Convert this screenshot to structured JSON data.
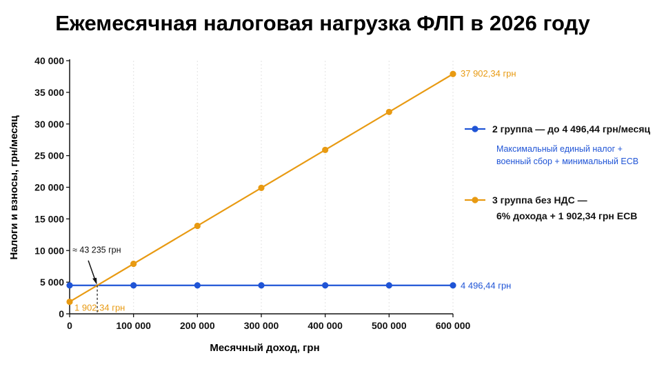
{
  "title": "Ежемесячная налоговая нагрузка ФЛП в 2026 году",
  "colors": {
    "group2": "#1f54d6",
    "group3": "#e89a12",
    "grid": "#e6e6e6",
    "axis": "#111111"
  },
  "chart_data": {
    "type": "line",
    "title": "Ежемесячная налоговая нагрузка ФЛП в 2026 году",
    "xlabel": "Месячный доход, грн",
    "ylabel": "Налоги и взносы, грн/месяц",
    "xlim": [
      0,
      600000
    ],
    "ylim": [
      0,
      40000
    ],
    "x_ticks": [
      0,
      100000,
      200000,
      300000,
      400000,
      500000,
      600000
    ],
    "x_tick_labels": [
      "0",
      "100 000",
      "200 000",
      "300 000",
      "400 000",
      "500 000",
      "600 000"
    ],
    "y_ticks": [
      0,
      5000,
      10000,
      15000,
      20000,
      25000,
      30000,
      35000,
      40000
    ],
    "y_tick_labels": [
      "0",
      "5 000",
      "10 000",
      "15 000",
      "20 000",
      "25 000",
      "30 000",
      "35 000",
      "40 000"
    ],
    "grid": "vertical dotted",
    "legend_position": "right",
    "series": [
      {
        "name": "2 группа — до 4 496,44 грн/месяц",
        "description": "Максимальный единый налог + военный сбор + минимальный ЕСВ",
        "color": "#1f54d6",
        "x": [
          0,
          100000,
          200000,
          300000,
          400000,
          500000,
          600000
        ],
        "y": [
          4496.44,
          4496.44,
          4496.44,
          4496.44,
          4496.44,
          4496.44,
          4496.44
        ],
        "end_label": "4 496,44 грн"
      },
      {
        "name": "3 группа без НДС — 6% дохода + 1 902,34 грн ЕСВ",
        "name_lines": [
          "3 группа без НДС —",
          "6% дохода + 1 902,34 грн ЕСВ"
        ],
        "color": "#e89a12",
        "x": [
          0,
          100000,
          200000,
          300000,
          400000,
          500000,
          600000
        ],
        "y": [
          1902.34,
          7902.34,
          13902.34,
          19902.34,
          25902.34,
          31902.34,
          37902.34
        ],
        "start_label": "1 902,34 грн",
        "end_label": "37 902,34 грн"
      }
    ],
    "annotations": [
      {
        "text": "≈ 43 235 грн",
        "x": 43235,
        "y": 4496.44
      }
    ]
  }
}
